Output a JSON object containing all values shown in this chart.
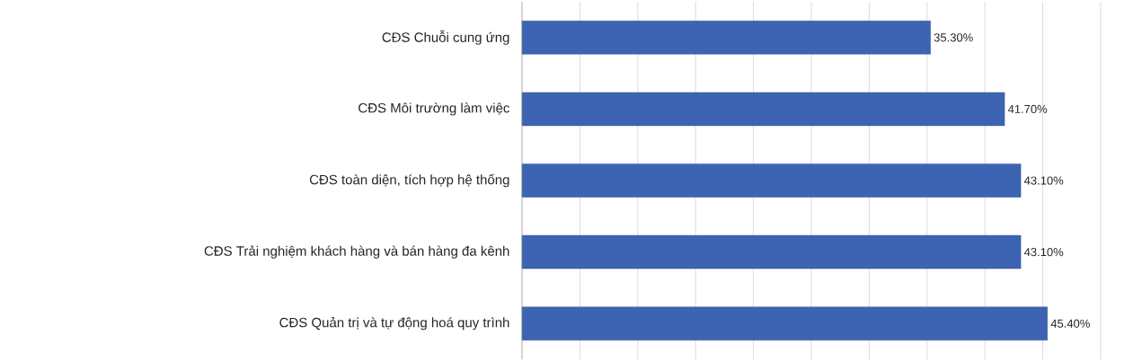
{
  "chart_data": {
    "type": "bar",
    "orientation": "horizontal",
    "categories": [
      "CĐS Chuỗi cung ứng",
      "CĐS Môi trường làm việc",
      "CĐS toàn diện, tích hợp hệ thống",
      "CĐS Trải nghiệm khách hàng và bán hàng đa kênh",
      "CĐS Quản trị và tự động hoá quy trình"
    ],
    "values": [
      35.3,
      41.7,
      43.1,
      43.1,
      45.4
    ],
    "value_labels": [
      "35.30%",
      "41.70%",
      "43.10%",
      "43.10%",
      "45.40%"
    ],
    "color": "#3d64b3",
    "xlim": [
      0,
      50
    ],
    "xticks": [
      {
        "value": 0,
        "label": null
      },
      {
        "value": 5,
        "label": null
      },
      {
        "value": 10,
        "label": null
      },
      {
        "value": 15,
        "label": null
      },
      {
        "value": 20,
        "label": null
      },
      {
        "value": 25,
        "label": null
      },
      {
        "value": 30,
        "label": null
      },
      {
        "value": 35,
        "label": null
      },
      {
        "value": 40,
        "label": null
      },
      {
        "value": 45,
        "label": null
      },
      {
        "value": 50,
        "label": null
      }
    ],
    "grid": "x",
    "tick_labels": "y"
  }
}
